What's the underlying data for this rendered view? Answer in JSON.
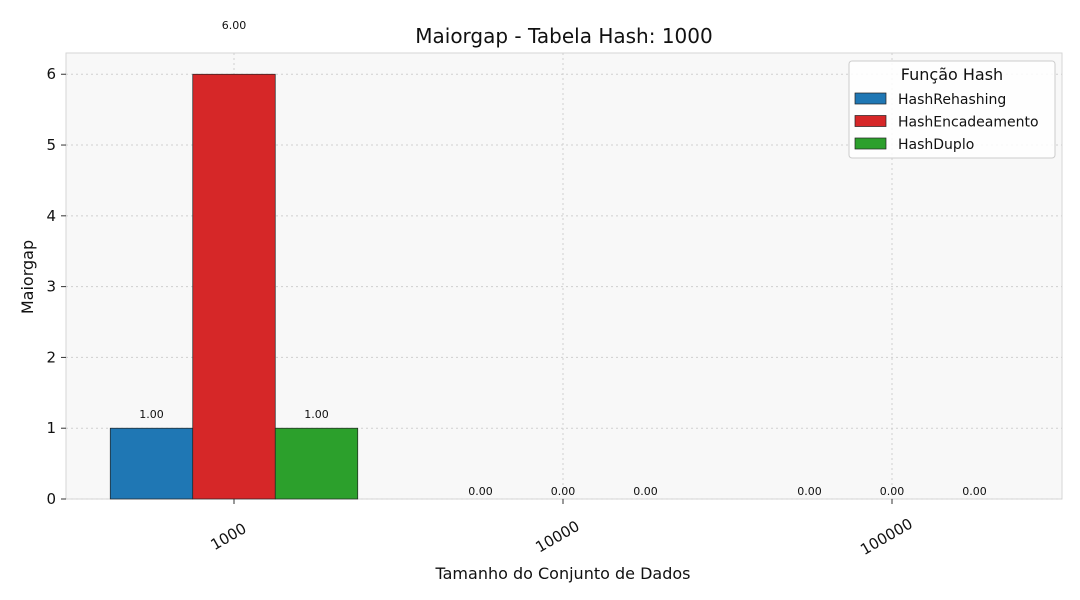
{
  "chart_data": {
    "type": "bar",
    "title": "Maiorgap - Tabela Hash: 1000",
    "xlabel": "Tamanho do Conjunto de Dados",
    "ylabel": "Maiorgap",
    "categories": [
      "1000",
      "10000",
      "100000"
    ],
    "yticks": [
      "0",
      "1",
      "2",
      "3",
      "4",
      "5",
      "6"
    ],
    "ylim": [
      0,
      6.3
    ],
    "grid": true,
    "legend_placement": "top-right",
    "legend_title": "Função Hash",
    "series": [
      {
        "name": "HashRehashing",
        "color": "#1f77b4",
        "values": [
          1.0,
          0.0,
          0.0
        ],
        "labels": [
          "1.00",
          "0.00",
          "0.00"
        ]
      },
      {
        "name": "HashEncadeamento",
        "color": "#d62728",
        "values": [
          6.0,
          0.0,
          0.0
        ],
        "labels": [
          "6.00",
          "0.00",
          "0.00"
        ]
      },
      {
        "name": "HashDuplo",
        "color": "#2ca02c",
        "values": [
          1.0,
          0.0,
          0.0
        ],
        "labels": [
          "1.00",
          "0.00",
          "0.00"
        ]
      }
    ]
  }
}
